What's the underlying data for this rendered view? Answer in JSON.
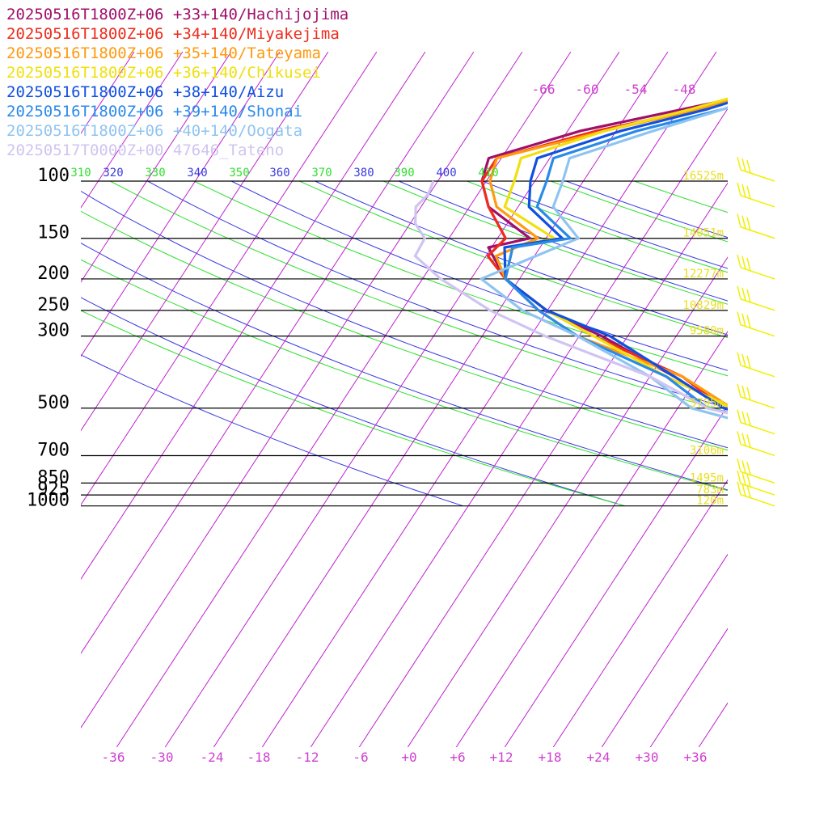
{
  "chart_data": {
    "type": "line",
    "title": "",
    "legend": [
      {
        "label": "20250516T1800Z+06 +33+140/Hachijojima",
        "color": "#a0106a"
      },
      {
        "label": "20250516T1800Z+06 +34+140/Miyakejima",
        "color": "#ee2c1c"
      },
      {
        "label": "20250516T1800Z+06 +35+140/Tateyama",
        "color": "#ff9a10"
      },
      {
        "label": "20250516T1800Z+06 +36+140/Chikusei",
        "color": "#f0e010"
      },
      {
        "label": "20250516T1800Z+06 +38+140/Aizu",
        "color": "#1050e0"
      },
      {
        "label": "20250516T1800Z+06 +39+140/Shonai",
        "color": "#2a8ae8"
      },
      {
        "label": "20250516T1800Z+06 +40+140/Oogata",
        "color": "#90c4f0"
      },
      {
        "label": "20250517T0000Z+00 47646_Tateno",
        "color": "#d0c4f0"
      }
    ],
    "pressure_levels": [
      {
        "p": 100,
        "label": "100",
        "height": "16525m"
      },
      {
        "p": 150,
        "label": "150",
        "height": "14051m"
      },
      {
        "p": 200,
        "label": "200",
        "height": "12277m"
      },
      {
        "p": 250,
        "label": "250",
        "height": "10829m"
      },
      {
        "p": 300,
        "label": "300",
        "height": "9580m"
      },
      {
        "p": 500,
        "label": "500",
        "height": "5795m"
      },
      {
        "p": 700,
        "label": "700",
        "height": "3106m"
      },
      {
        "p": 850,
        "label": "850",
        "height": "1495m"
      },
      {
        "p": 925,
        "label": "925",
        "height": "783m"
      },
      {
        "p": 1000,
        "label": "1000",
        "height": "120m"
      }
    ],
    "temp_ticks": [
      "-36",
      "-30",
      "-24",
      "-18",
      "-12",
      "-6",
      "+0",
      "+6",
      "+12",
      "+18",
      "+24",
      "+30",
      "+36"
    ],
    "upper_temp_labels": [
      "-66",
      "-60",
      "-54",
      "-48"
    ],
    "theta_labels": [
      "310",
      "320",
      "330",
      "340",
      "350",
      "360",
      "370",
      "380",
      "390",
      "400",
      "410"
    ],
    "series": [
      {
        "name": "Hachijojima",
        "color": "#a0106a",
        "points": [
          [
            18,
            1000
          ],
          [
            17.5,
            925
          ],
          [
            21,
            850
          ],
          [
            18,
            800
          ],
          [
            15,
            700
          ],
          [
            13,
            600
          ],
          [
            -3,
            500
          ],
          [
            -13,
            400
          ],
          [
            -27,
            300
          ],
          [
            -37,
            250
          ],
          [
            -46,
            200
          ],
          [
            -52,
            160
          ],
          [
            -48,
            150
          ],
          [
            -57,
            120
          ],
          [
            -61,
            100
          ],
          [
            -63,
            85
          ],
          [
            -55,
            70
          ],
          [
            -45,
            60
          ],
          [
            -33,
            50
          ]
        ]
      },
      {
        "name": "Miyakejima",
        "color": "#ee2c1c",
        "points": [
          [
            20,
            1000
          ],
          [
            19,
            925
          ],
          [
            20,
            900
          ],
          [
            19,
            850
          ],
          [
            17,
            750
          ],
          [
            15,
            700
          ],
          [
            13,
            600
          ],
          [
            -3,
            500
          ],
          [
            -12,
            400
          ],
          [
            -28,
            300
          ],
          [
            -37,
            250
          ],
          [
            -46,
            200
          ],
          [
            -51,
            170
          ],
          [
            -51,
            150
          ],
          [
            -57,
            120
          ],
          [
            -61,
            100
          ],
          [
            -62,
            85
          ],
          [
            -53,
            70
          ],
          [
            -43,
            60
          ],
          [
            -34,
            50
          ]
        ]
      },
      {
        "name": "Tateyama",
        "color": "#ff9a10",
        "points": [
          [
            18,
            1000
          ],
          [
            19,
            900
          ],
          [
            18,
            850
          ],
          [
            15,
            700
          ],
          [
            13,
            620
          ],
          [
            -2,
            500
          ],
          [
            -12,
            400
          ],
          [
            -30,
            300
          ],
          [
            -38,
            250
          ],
          [
            -46,
            200
          ],
          [
            -50,
            170
          ],
          [
            -47,
            150
          ],
          [
            -56,
            120
          ],
          [
            -60,
            100
          ],
          [
            -62,
            85
          ],
          [
            -52,
            70
          ],
          [
            -43,
            60
          ],
          [
            -35,
            50
          ]
        ]
      },
      {
        "name": "Chikusei",
        "color": "#f0e010",
        "points": [
          [
            16,
            1000
          ],
          [
            17,
            925
          ],
          [
            17,
            850
          ],
          [
            14,
            700
          ],
          [
            12,
            620
          ],
          [
            -2,
            500
          ],
          [
            -14,
            400
          ],
          [
            -28,
            300
          ],
          [
            -37,
            250
          ],
          [
            -46,
            200
          ],
          [
            -49,
            160
          ],
          [
            -45,
            150
          ],
          [
            -55,
            120
          ],
          [
            -57,
            100
          ],
          [
            -59,
            85
          ],
          [
            -52,
            70
          ],
          [
            -44,
            60
          ],
          [
            -36,
            50
          ]
        ]
      },
      {
        "name": "Aizu",
        "color": "#1050e0",
        "points": [
          [
            15,
            1000
          ],
          [
            14,
            925
          ],
          [
            16,
            850
          ],
          [
            14,
            700
          ],
          [
            12,
            600
          ],
          [
            -3,
            500
          ],
          [
            -13,
            400
          ],
          [
            -26,
            300
          ],
          [
            -37,
            250
          ],
          [
            -46,
            200
          ],
          [
            -50,
            160
          ],
          [
            -44,
            150
          ],
          [
            -52,
            120
          ],
          [
            -55,
            100
          ],
          [
            -57,
            85
          ],
          [
            -50,
            70
          ],
          [
            -42,
            60
          ],
          [
            -35,
            50
          ]
        ]
      },
      {
        "name": "Shonai",
        "color": "#2a8ae8",
        "points": [
          [
            13,
            1000
          ],
          [
            11,
            925
          ],
          [
            13,
            850
          ],
          [
            10,
            700
          ],
          [
            12,
            600
          ],
          [
            -5,
            500
          ],
          [
            -14,
            400
          ],
          [
            -30,
            300
          ],
          [
            -38,
            250
          ],
          [
            -46,
            200
          ],
          [
            -49,
            160
          ],
          [
            -43,
            150
          ],
          [
            -51,
            120
          ],
          [
            -53,
            100
          ],
          [
            -55,
            85
          ],
          [
            -48,
            70
          ],
          [
            -40,
            60
          ],
          [
            -34,
            50
          ]
        ]
      },
      {
        "name": "Oogata",
        "color": "#90c4f0",
        "points": [
          [
            12,
            1000
          ],
          [
            11,
            925
          ],
          [
            11,
            850
          ],
          [
            7,
            700
          ],
          [
            8,
            600
          ],
          [
            -7,
            500
          ],
          [
            -16,
            400
          ],
          [
            -30,
            300
          ],
          [
            -40,
            250
          ],
          [
            -49,
            200
          ],
          [
            -42,
            150
          ],
          [
            -49,
            120
          ],
          [
            -51,
            100
          ],
          [
            -53,
            85
          ],
          [
            -46,
            70
          ],
          [
            -40,
            60
          ],
          [
            -33,
            50
          ]
        ]
      },
      {
        "name": "Tateno",
        "color": "#d0c4f0",
        "points": [
          [
            15,
            1000
          ],
          [
            16,
            925
          ],
          [
            15,
            850
          ],
          [
            13,
            700
          ],
          [
            11,
            600
          ],
          [
            -5,
            500
          ],
          [
            -16,
            400
          ],
          [
            -34,
            300
          ],
          [
            -44,
            250
          ],
          [
            -54,
            200
          ],
          [
            -60,
            170
          ],
          [
            -61,
            150
          ],
          [
            -64,
            135
          ],
          [
            -66,
            120
          ],
          [
            -66,
            110
          ],
          [
            -67,
            100
          ]
        ]
      }
    ],
    "wind_barb_levels": [
      1000,
      925,
      850,
      700,
      600,
      500,
      400,
      300,
      250,
      200,
      150,
      120,
      100
    ]
  },
  "colors": {
    "isobar": "#000000",
    "isotherm": "#c020d0",
    "dry_adiabat": "#3a3ae0",
    "moist_adiabat": "#30e030",
    "height_label": "#e8e020",
    "wind_barb": "#f0f000",
    "tick_label": "#d040d0"
  }
}
